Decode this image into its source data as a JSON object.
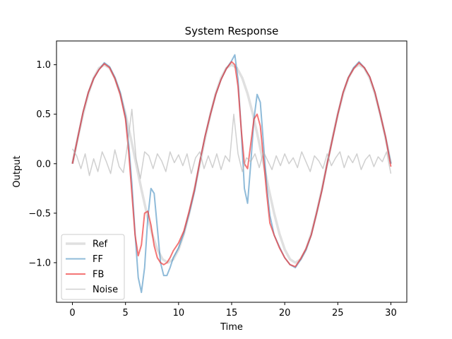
{
  "chart_data": {
    "type": "line",
    "title": "System Response",
    "xlabel": "Time",
    "ylabel": "Output",
    "xlim": [
      -1.5,
      31.5
    ],
    "ylim": [
      -1.4,
      1.24
    ],
    "xticks": [
      0,
      5,
      10,
      15,
      20,
      25,
      30
    ],
    "xtick_labels": [
      "0",
      "5",
      "10",
      "15",
      "20",
      "25",
      "30"
    ],
    "yticks": [
      -1.0,
      -0.5,
      0.0,
      0.5,
      1.0
    ],
    "ytick_labels": [
      "−1.0",
      "−0.5",
      "0.0",
      "0.5",
      "1.0"
    ],
    "grid": false,
    "legend_position": "lower-left",
    "series": [
      {
        "name": "Ref",
        "color": "#d3d3d3",
        "width": 3.5,
        "opacity": 0.7,
        "x": [
          0,
          0.5,
          1,
          1.5,
          2,
          2.5,
          3,
          3.5,
          4,
          4.5,
          5,
          5.5,
          6,
          6.5,
          7,
          7.5,
          8,
          8.5,
          9,
          9.5,
          10,
          10.5,
          11,
          11.5,
          12,
          12.5,
          13,
          13.5,
          14,
          14.5,
          15,
          15.5,
          16,
          16.5,
          17,
          17.5,
          18,
          18.5,
          19,
          19.5,
          20,
          20.5,
          21,
          21.5,
          22,
          22.5,
          23,
          23.5,
          24,
          24.5,
          25,
          25.5,
          26,
          26.5,
          27,
          27.5,
          28,
          28.5,
          29,
          29.5,
          30
        ],
        "values": [
          0.0,
          0.259,
          0.5,
          0.707,
          0.866,
          0.966,
          1.0,
          0.966,
          0.866,
          0.707,
          0.5,
          0.259,
          0.0,
          -0.259,
          -0.5,
          -0.707,
          -0.866,
          -0.966,
          -1.0,
          -0.966,
          -0.866,
          -0.707,
          -0.5,
          -0.259,
          0.0,
          0.259,
          0.5,
          0.707,
          0.866,
          0.966,
          1.0,
          0.966,
          0.866,
          0.707,
          0.5,
          0.259,
          0.0,
          -0.259,
          -0.5,
          -0.707,
          -0.866,
          -0.966,
          -1.0,
          -0.966,
          -0.866,
          -0.707,
          -0.5,
          -0.259,
          0.0,
          0.259,
          0.5,
          0.707,
          0.866,
          0.966,
          1.0,
          0.966,
          0.866,
          0.707,
          0.5,
          0.259,
          0.0
        ]
      },
      {
        "name": "FF",
        "color": "#1f77b4",
        "width": 2,
        "opacity": 0.5,
        "x": [
          0,
          0.5,
          1,
          1.5,
          2,
          2.5,
          3,
          3.5,
          4,
          4.5,
          5,
          5.3,
          5.6,
          5.9,
          6.2,
          6.5,
          6.8,
          7.1,
          7.4,
          7.7,
          8.0,
          8.3,
          8.6,
          8.9,
          9.2,
          9.5,
          10,
          10.5,
          11,
          11.5,
          12,
          12.5,
          13,
          13.5,
          14,
          14.5,
          15,
          15.3,
          15.6,
          15.9,
          16.2,
          16.5,
          16.8,
          17.1,
          17.4,
          17.7,
          18.0,
          18.3,
          18.6,
          19,
          19.5,
          20,
          20.5,
          21,
          21.5,
          22,
          22.5,
          23,
          23.5,
          24,
          24.5,
          25,
          25.5,
          26,
          26.5,
          27,
          27.5,
          28,
          28.5,
          29,
          29.5,
          30
        ],
        "values": [
          0.0,
          0.26,
          0.52,
          0.72,
          0.86,
          0.95,
          1.02,
          0.98,
          0.87,
          0.72,
          0.48,
          0.2,
          -0.2,
          -0.7,
          -1.15,
          -1.3,
          -1.05,
          -0.55,
          -0.25,
          -0.3,
          -0.65,
          -1.0,
          -1.13,
          -1.13,
          -1.05,
          -0.95,
          -0.85,
          -0.7,
          -0.5,
          -0.28,
          0.02,
          0.28,
          0.5,
          0.7,
          0.85,
          0.96,
          1.04,
          1.1,
          0.85,
          0.35,
          -0.25,
          -0.4,
          0.0,
          0.45,
          0.7,
          0.62,
          0.2,
          -0.22,
          -0.52,
          -0.72,
          -0.84,
          -0.95,
          -1.02,
          -1.05,
          -0.97,
          -0.87,
          -0.72,
          -0.5,
          -0.27,
          0.0,
          0.25,
          0.5,
          0.72,
          0.87,
          0.97,
          1.03,
          0.97,
          0.88,
          0.72,
          0.5,
          0.27,
          0.0
        ]
      },
      {
        "name": "FB",
        "color": "#f03c3c",
        "width": 2,
        "opacity": 0.7,
        "x": [
          0,
          0.5,
          1,
          1.5,
          2,
          2.5,
          3,
          3.5,
          4,
          4.5,
          5,
          5.3,
          5.6,
          5.9,
          6.2,
          6.5,
          6.8,
          7.1,
          7.4,
          7.7,
          8.0,
          8.3,
          8.6,
          8.9,
          9.2,
          9.5,
          10,
          10.5,
          11,
          11.5,
          12,
          12.5,
          13,
          13.5,
          14,
          14.5,
          15,
          15.3,
          15.6,
          15.9,
          16.2,
          16.5,
          16.8,
          17.1,
          17.4,
          17.7,
          18.0,
          18.3,
          18.6,
          19,
          19.5,
          20,
          20.5,
          21,
          21.5,
          22,
          22.5,
          23,
          23.5,
          24,
          24.5,
          25,
          25.5,
          26,
          26.5,
          27,
          27.5,
          28,
          28.5,
          29,
          29.5,
          30
        ],
        "values": [
          0.0,
          0.26,
          0.52,
          0.72,
          0.86,
          0.95,
          1.01,
          0.97,
          0.86,
          0.7,
          0.45,
          0.12,
          -0.3,
          -0.72,
          -0.93,
          -0.82,
          -0.5,
          -0.48,
          -0.62,
          -0.83,
          -0.95,
          -1.0,
          -1.02,
          -1.0,
          -0.95,
          -0.88,
          -0.8,
          -0.68,
          -0.48,
          -0.26,
          0.02,
          0.28,
          0.5,
          0.7,
          0.85,
          0.96,
          1.03,
          1.0,
          0.78,
          0.35,
          0.0,
          -0.05,
          0.2,
          0.45,
          0.5,
          0.38,
          0.05,
          -0.3,
          -0.6,
          -0.72,
          -0.85,
          -0.95,
          -1.02,
          -1.04,
          -0.96,
          -0.86,
          -0.72,
          -0.5,
          -0.27,
          0.0,
          0.25,
          0.5,
          0.72,
          0.87,
          0.96,
          1.02,
          0.97,
          0.88,
          0.72,
          0.5,
          0.27,
          -0.03
        ]
      },
      {
        "name": "Noise",
        "color": "#b0b0b0",
        "width": 1.5,
        "opacity": 0.6,
        "x": [
          0,
          0.4,
          0.8,
          1.2,
          1.6,
          2.0,
          2.4,
          2.8,
          3.2,
          3.6,
          4.0,
          4.4,
          4.8,
          5.2,
          5.6,
          6.0,
          6.4,
          6.8,
          7.2,
          7.6,
          8.0,
          8.4,
          8.8,
          9.2,
          9.6,
          10.0,
          10.4,
          10.8,
          11.2,
          11.6,
          12.0,
          12.4,
          12.8,
          13.2,
          13.6,
          14.0,
          14.4,
          14.8,
          15.2,
          15.6,
          16.0,
          16.4,
          16.8,
          17.2,
          17.6,
          18.0,
          18.4,
          18.8,
          19.2,
          19.6,
          20.0,
          20.4,
          20.8,
          21.2,
          21.6,
          22.0,
          22.4,
          22.8,
          23.2,
          23.6,
          24.0,
          24.4,
          24.8,
          25.2,
          25.6,
          26.0,
          26.4,
          26.8,
          27.2,
          27.6,
          28.0,
          28.4,
          28.8,
          29.2,
          29.6,
          30.0
        ],
        "values": [
          0.15,
          0.08,
          -0.05,
          0.1,
          -0.12,
          0.05,
          -0.08,
          0.12,
          0.02,
          -0.1,
          0.14,
          -0.03,
          -0.09,
          0.2,
          0.55,
          0.05,
          -0.15,
          0.12,
          0.08,
          -0.05,
          0.1,
          0.03,
          -0.08,
          0.12,
          0.01,
          0.09,
          -0.02,
          0.1,
          -0.1,
          0.06,
          0.12,
          -0.05,
          0.08,
          -0.04,
          0.1,
          -0.06,
          0.08,
          0.02,
          0.5,
          0.1,
          -0.08,
          0.06,
          0.02,
          0.1,
          -0.04,
          0.12,
          0.03,
          -0.06,
          0.08,
          -0.02,
          0.1,
          0.0,
          0.06,
          -0.04,
          0.12,
          0.02,
          -0.08,
          0.08,
          0.03,
          -0.05,
          0.1,
          -0.02,
          0.06,
          0.12,
          -0.04,
          0.08,
          0.01,
          0.1,
          -0.06,
          0.04,
          0.09,
          -0.03,
          0.07,
          0.02,
          0.12,
          -0.1
        ]
      }
    ]
  }
}
